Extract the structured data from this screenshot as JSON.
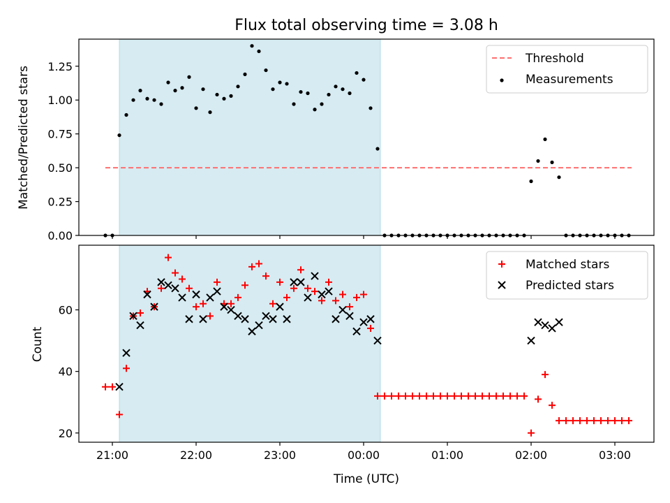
{
  "chart_data": [
    {
      "type": "scatter",
      "title": "Flux total observing time = 3.08 h",
      "xlabel": "",
      "ylabel": "Matched/Predicted stars",
      "ylim": [
        0,
        1.45
      ],
      "yticks": [
        "0.00",
        "0.25",
        "0.50",
        "0.75",
        "1.00",
        "1.25"
      ],
      "ytick_values": [
        0,
        0.25,
        0.5,
        0.75,
        1.0,
        1.25
      ],
      "shaded_interval": [
        "21:05",
        "00:12"
      ],
      "shade_color": "#add8e6",
      "legend_position": "upper right",
      "threshold": {
        "name": "Threshold",
        "value": 0.5,
        "x_range": [
          "20:55",
          "03:12"
        ],
        "color": "#ff6f6f"
      },
      "series": [
        {
          "name": "Measurements",
          "color": "#000000",
          "marker": "dot",
          "x": [
            "20:55",
            "21:00",
            "21:05",
            "21:10",
            "21:15",
            "21:20",
            "21:25",
            "21:30",
            "21:35",
            "21:40",
            "21:45",
            "21:50",
            "21:55",
            "22:00",
            "22:05",
            "22:10",
            "22:15",
            "22:20",
            "22:25",
            "22:30",
            "22:35",
            "22:40",
            "22:45",
            "22:50",
            "22:55",
            "23:00",
            "23:05",
            "23:10",
            "23:15",
            "23:20",
            "23:25",
            "23:30",
            "23:35",
            "23:40",
            "23:45",
            "23:50",
            "23:55",
            "00:00",
            "00:05",
            "00:10",
            "00:15",
            "00:20",
            "00:25",
            "00:30",
            "00:35",
            "00:40",
            "00:45",
            "00:50",
            "00:55",
            "01:00",
            "01:05",
            "01:10",
            "01:15",
            "01:20",
            "01:25",
            "01:30",
            "01:35",
            "01:40",
            "01:45",
            "01:50",
            "01:55",
            "02:00",
            "02:05",
            "02:10",
            "02:15",
            "02:20",
            "02:25",
            "02:30",
            "02:35",
            "02:40",
            "02:45",
            "02:50",
            "02:55",
            "03:00",
            "03:05",
            "03:10"
          ],
          "y": [
            0,
            0,
            0.74,
            0.89,
            1.0,
            1.07,
            1.01,
            1.0,
            0.97,
            1.13,
            1.07,
            1.09,
            1.17,
            0.94,
            1.08,
            0.91,
            1.04,
            1.01,
            1.03,
            1.1,
            1.19,
            1.4,
            1.36,
            1.22,
            1.08,
            1.13,
            1.12,
            0.97,
            1.06,
            1.05,
            0.93,
            0.97,
            1.04,
            1.1,
            1.08,
            1.05,
            1.2,
            1.15,
            0.94,
            0.64,
            0,
            0,
            0,
            0,
            0,
            0,
            0,
            0,
            0,
            0,
            0,
            0,
            0,
            0,
            0,
            0,
            0,
            0,
            0,
            0,
            0,
            0.4,
            0.55,
            0.71,
            0.54,
            0.43,
            0,
            0,
            0,
            0,
            0,
            0,
            0,
            0,
            0,
            0
          ]
        }
      ]
    },
    {
      "type": "scatter",
      "title": "",
      "xlabel": "Time (UTC)",
      "ylabel": "Count",
      "ylim": [
        17,
        81
      ],
      "yticks": [
        "20",
        "40",
        "60"
      ],
      "ytick_values": [
        20,
        40,
        60
      ],
      "xticks": [
        "21:00",
        "22:00",
        "23:00",
        "00:00",
        "01:00",
        "02:00",
        "03:00"
      ],
      "shaded_interval": [
        "21:05",
        "00:12"
      ],
      "legend_position": "upper right",
      "series": [
        {
          "name": "Matched stars",
          "color": "#ff0000",
          "marker": "plus",
          "x": [
            "20:55",
            "21:00",
            "21:05",
            "21:10",
            "21:15",
            "21:20",
            "21:25",
            "21:30",
            "21:35",
            "21:40",
            "21:45",
            "21:50",
            "21:55",
            "22:00",
            "22:05",
            "22:10",
            "22:15",
            "22:20",
            "22:25",
            "22:30",
            "22:35",
            "22:40",
            "22:45",
            "22:50",
            "22:55",
            "23:00",
            "23:05",
            "23:10",
            "23:15",
            "23:20",
            "23:25",
            "23:30",
            "23:35",
            "23:40",
            "23:45",
            "23:50",
            "23:55",
            "00:00",
            "00:05",
            "00:10",
            "00:15",
            "00:20",
            "00:25",
            "00:30",
            "00:35",
            "00:40",
            "00:45",
            "00:50",
            "00:55",
            "01:00",
            "01:05",
            "01:10",
            "01:15",
            "01:20",
            "01:25",
            "01:30",
            "01:35",
            "01:40",
            "01:45",
            "01:50",
            "01:55",
            "02:00",
            "02:05",
            "02:10",
            "02:15",
            "02:20",
            "02:25",
            "02:30",
            "02:35",
            "02:40",
            "02:45",
            "02:50",
            "02:55",
            "03:00",
            "03:05",
            "03:10"
          ],
          "y": [
            35,
            35,
            26,
            41,
            58,
            59,
            66,
            61,
            67,
            77,
            72,
            70,
            67,
            61,
            62,
            58,
            69,
            62,
            62,
            64,
            68,
            74,
            75,
            71,
            62,
            69,
            64,
            67,
            73,
            67,
            66,
            63,
            69,
            63,
            65,
            61,
            64,
            65,
            54,
            32,
            32,
            32,
            32,
            32,
            32,
            32,
            32,
            32,
            32,
            32,
            32,
            32,
            32,
            32,
            32,
            32,
            32,
            32,
            32,
            32,
            32,
            20,
            31,
            39,
            29,
            24,
            24,
            24,
            24,
            24,
            24,
            24,
            24,
            24,
            24,
            24
          ]
        },
        {
          "name": "Predicted stars",
          "color": "#000000",
          "marker": "x",
          "x": [
            "21:05",
            "21:10",
            "21:15",
            "21:20",
            "21:25",
            "21:30",
            "21:35",
            "21:40",
            "21:45",
            "21:50",
            "21:55",
            "22:00",
            "22:05",
            "22:10",
            "22:15",
            "22:20",
            "22:25",
            "22:30",
            "22:35",
            "22:40",
            "22:45",
            "22:50",
            "22:55",
            "23:00",
            "23:05",
            "23:10",
            "23:15",
            "23:20",
            "23:25",
            "23:30",
            "23:35",
            "23:40",
            "23:45",
            "23:50",
            "23:55",
            "00:00",
            "00:05",
            "00:10",
            "02:00",
            "02:05",
            "02:10",
            "02:15",
            "02:20"
          ],
          "y": [
            35,
            46,
            58,
            55,
            65,
            61,
            69,
            68,
            67,
            64,
            57,
            65,
            57,
            64,
            66,
            61,
            60,
            58,
            57,
            53,
            55,
            58,
            57,
            61,
            57,
            69,
            69,
            64,
            71,
            65,
            66,
            57,
            60,
            58,
            53,
            56,
            57,
            50,
            50,
            56,
            55,
            54,
            56
          ]
        }
      ]
    }
  ]
}
